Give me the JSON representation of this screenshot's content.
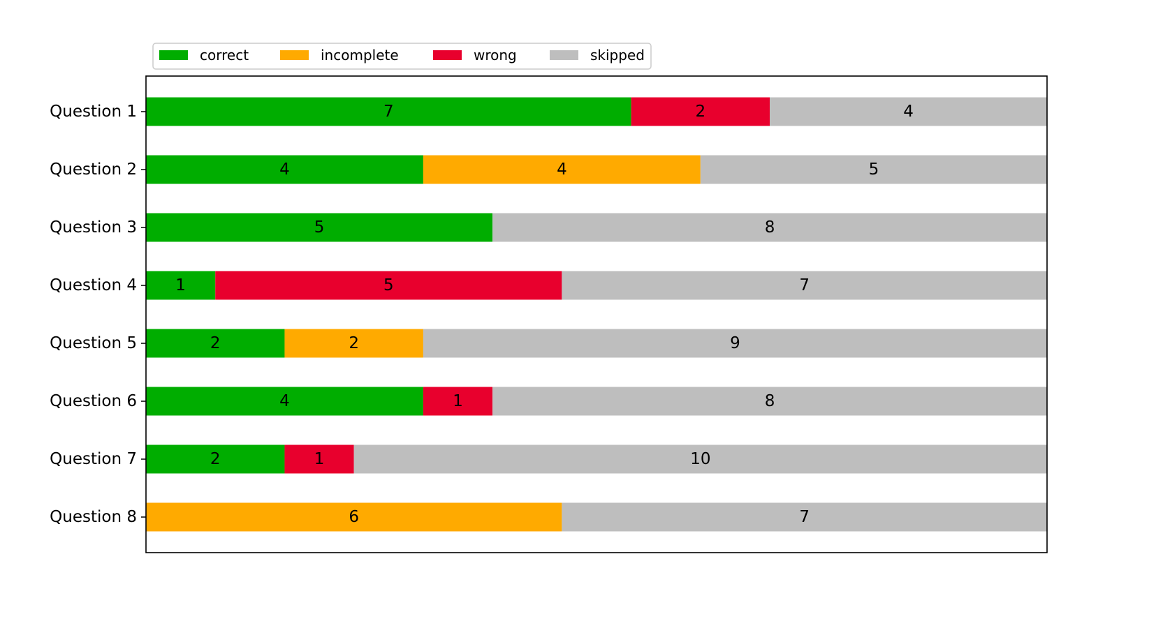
{
  "chart_data": {
    "type": "bar",
    "orientation": "horizontal",
    "stacked": true,
    "categories": [
      "Question 1",
      "Question 2",
      "Question 3",
      "Question 4",
      "Question 5",
      "Question 6",
      "Question 7",
      "Question 8"
    ],
    "series": [
      {
        "name": "correct",
        "color": "#00ad00",
        "values": [
          7,
          4,
          5,
          1,
          2,
          4,
          2,
          0
        ]
      },
      {
        "name": "incomplete",
        "color": "#ffaa00",
        "values": [
          0,
          4,
          0,
          0,
          2,
          0,
          0,
          6
        ]
      },
      {
        "name": "wrong",
        "color": "#e8002d",
        "values": [
          2,
          0,
          0,
          5,
          0,
          1,
          1,
          0
        ]
      },
      {
        "name": "skipped",
        "color": "#bebebe",
        "values": [
          4,
          5,
          8,
          7,
          9,
          8,
          10,
          7
        ]
      }
    ],
    "xlim": [
      0,
      13
    ],
    "x_axis_visible": false,
    "data_labels": true,
    "legend": {
      "placement": "top-left, above axes",
      "ncol": 4
    },
    "grid": false,
    "title": "",
    "xlabel": "",
    "ylabel": ""
  }
}
